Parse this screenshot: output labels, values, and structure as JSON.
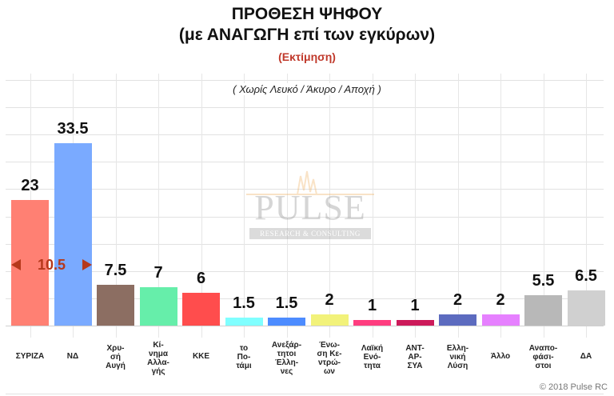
{
  "header": {
    "title_line1": "ΠΡΟΘΕΣΗ ΨΗΦΟΥ",
    "title_line2": "(με ΑΝΑΓΩΓΗ επί των εγκύρων)",
    "subtitle": "(Εκτίμηση)",
    "note": "( Χωρίς Λευκό / Άκυρο / Αποχή )"
  },
  "annotation": {
    "gap_label": "10.5",
    "gap_color": "#b5381b"
  },
  "watermark": {
    "brand": "PULSE",
    "tagline": "RESEARCH & CONSULTING"
  },
  "footer": {
    "copyright": "© 2018 Pulse RC"
  },
  "chart_data": {
    "type": "bar",
    "title": "ΠΡΟΘΕΣΗ ΨΗΦΟΥ (με ΑΝΑΓΩΓΗ επί των εγκύρων)",
    "subtitle": "(Εκτίμηση)",
    "annotation": "( Χωρίς Λευκό / Άκυρο / Αποχή )",
    "xlabel": "",
    "ylabel": "",
    "ylim": [
      0,
      45
    ],
    "grid": true,
    "legend": "none",
    "categories": [
      "ΣΥΡΙΖΑ",
      "ΝΔ",
      "Χρυσή Αυγή",
      "Κίνημα Αλλαγής",
      "ΚΚΕ",
      "το Ποτάμι",
      "Ανεξάρτητοι Έλληνες",
      "Ένωση Κεντρώων",
      "Λαϊκή Ενότητα",
      "ΑΝΤΑΡΣΥΑ",
      "Ελληνική Λύση",
      "Άλλο",
      "Αναποφάσιστοι",
      "ΔΑ"
    ],
    "category_labels": [
      "ΣΥΡΙΖΑ",
      "ΝΔ",
      "Χρυ-\nσή\nΑυγή",
      "Κί-\nνημα\nΑλλα-\nγής",
      "ΚΚΕ",
      "το\nΠο-\nτάμι",
      "Ανεξάρ-\nτητοι\nΈλλη-\nνες",
      "Ένω-\nση Κε-\nντρώ-\nων",
      "Λαϊκή\nΕνό-\nτητα",
      "ΑΝΤ-\nΑΡ-\nΣΥΑ",
      "Ελλη-\nνική\nΛύση",
      "Άλλο",
      "Αναπο-\nφάσι-\nστοι",
      "ΔΑ"
    ],
    "values": [
      23,
      33.5,
      7.5,
      7,
      6,
      1.5,
      1.5,
      2,
      1,
      1,
      2,
      2,
      5.5,
      6.5
    ],
    "value_labels": [
      "23",
      "33.5",
      "7.5",
      "7",
      "6",
      "1.5",
      "1.5",
      "2",
      "1",
      "1",
      "2",
      "2",
      "5.5",
      "6.5"
    ],
    "colors": [
      "#ff8073",
      "#7aaaff",
      "#8c6e62",
      "#66eeaa",
      "#ff4d4d",
      "#80ffff",
      "#4d8cff",
      "#f2f27a",
      "#ff3d7f",
      "#cc1a5a",
      "#5c6bbf",
      "#e680ff",
      "#b8b8b8",
      "#d0d0d0"
    ],
    "gap_annotation": {
      "between": [
        "ΣΥΡΙΖΑ",
        "ΝΔ"
      ],
      "value": 10.5
    }
  }
}
